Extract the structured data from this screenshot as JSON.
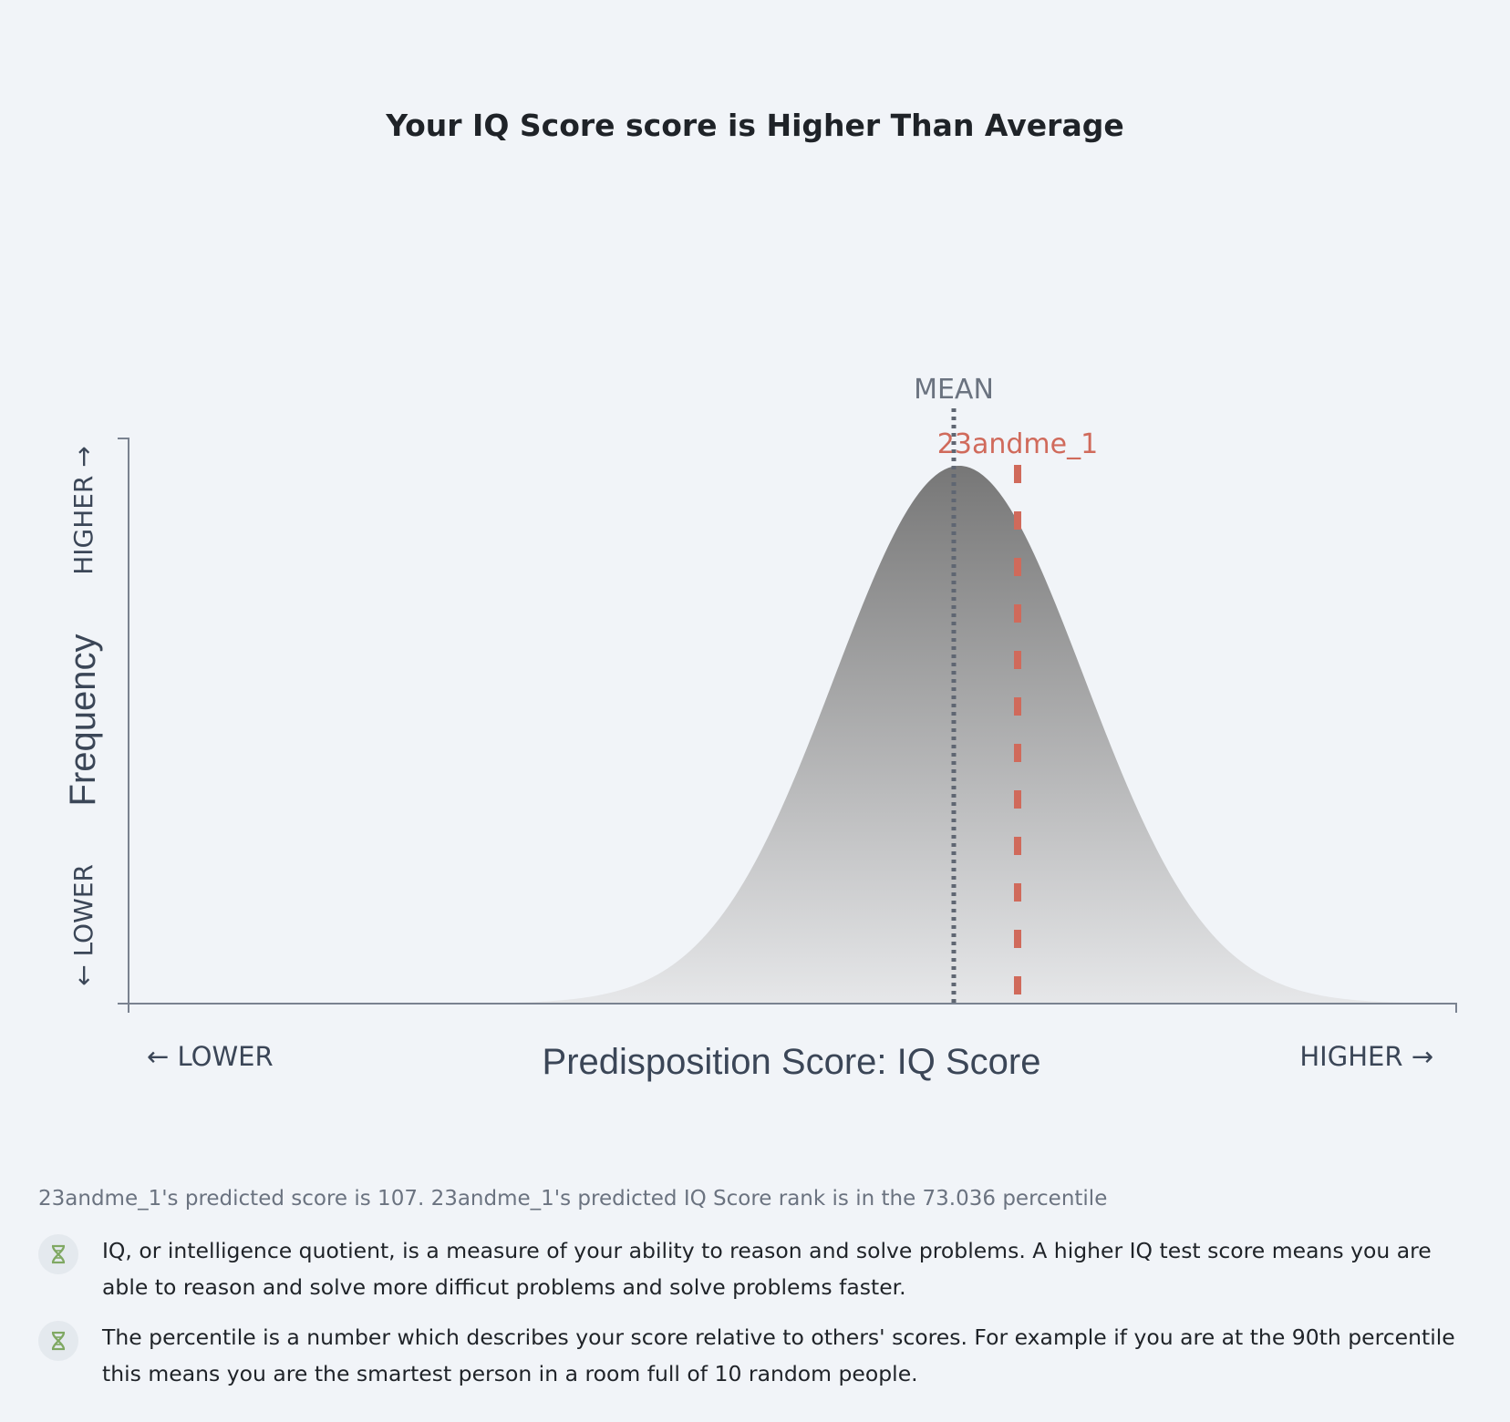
{
  "title": "Your IQ Score score is Higher Than Average",
  "chart_data": {
    "type": "area",
    "title": "Your IQ Score score is Higher Than Average",
    "xlabel": "Predisposition Score: IQ Score",
    "ylabel": "Frequency",
    "x_low_label": "← LOWER",
    "x_high_label": "HIGHER →",
    "y_low_label": "← LOWER",
    "y_high_label": "HIGHER →",
    "distribution": "normal",
    "markers": [
      {
        "label": "MEAN",
        "style": "dotted",
        "color": "#5f6672"
      },
      {
        "label": "23andme_1",
        "style": "dashed",
        "color": "#d06a5b"
      }
    ],
    "grid": false,
    "legend": "none"
  },
  "summary": "23andme_1's predicted score is 107. 23andme_1's predicted IQ Score rank is in the 73.036 percentile",
  "notes": [
    {
      "icon": "dna-icon",
      "text": "IQ, or intelligence quotient, is a measure of your ability to reason and solve problems. A higher IQ test score means you are able to reason and solve more difficut problems and solve problems faster."
    },
    {
      "icon": "dna-icon",
      "text": "The percentile is a number which describes your score relative to others' scores. For example if you are at the 90th percentile this means you are the smartest person in a room full of 10 random people."
    }
  ],
  "colors": {
    "mean_line": "#5f6672",
    "user_line": "#d06a5b",
    "axis": "#7a8290",
    "curve_top": "#777777",
    "curve_bottom": "#e6e7e9"
  }
}
